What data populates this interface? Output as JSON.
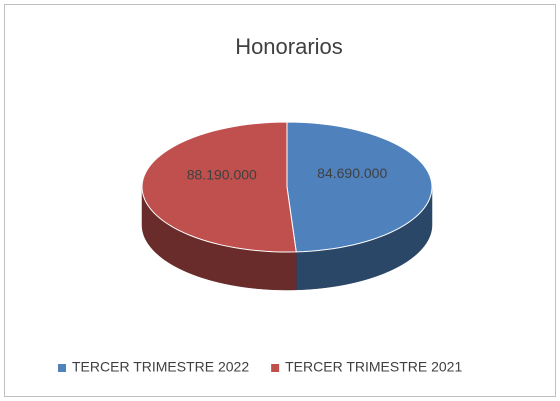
{
  "chart_data": {
    "type": "pie",
    "title": "Honorarios",
    "categories": [
      "TERCER TRIMESTRE 2022",
      "TERCER TRIMESTRE 2021"
    ],
    "values": [
      84690000,
      88190000
    ],
    "value_labels": [
      "84.690.000",
      "88.190.000"
    ],
    "colors": [
      "#4f81bd",
      "#c0504d"
    ],
    "legend": "bottom"
  }
}
